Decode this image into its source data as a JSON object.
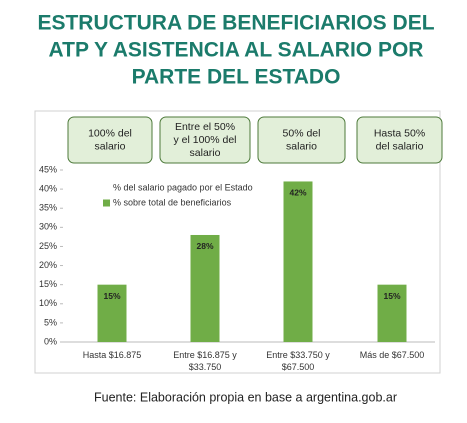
{
  "title": [
    "ESTRUCTURA DE BENEFICIARIOS DEL",
    "ATP Y ASISTENCIA AL SALARIO POR",
    "PARTE DEL ESTADO"
  ],
  "chart_data": {
    "type": "bar",
    "categories": [
      [
        "Hasta $16.875"
      ],
      [
        "Entre $16.875 y",
        "$33.750"
      ],
      [
        "Entre $33.750 y",
        "$67.500"
      ],
      [
        "Más de $67.500"
      ]
    ],
    "annotations": [
      [
        "100% del",
        "salario"
      ],
      [
        "Entre el 50%",
        "y el 100% del",
        "salario"
      ],
      [
        "50% del",
        "salario"
      ],
      [
        "Hasta 50%",
        "del salario"
      ]
    ],
    "series": [
      {
        "name": "% del salario pagado por el Estado",
        "color": "#ffffff",
        "values": [
          null,
          null,
          null,
          null
        ]
      },
      {
        "name": "% sobre total de beneficiarios",
        "color": "#70ad47",
        "values": [
          15,
          28,
          42,
          15
        ],
        "value_labels": [
          "15%",
          "28%",
          "42%",
          "15%"
        ]
      }
    ],
    "ylim": [
      0,
      45
    ],
    "yticks": [
      {
        "value": 0,
        "label": "0%"
      },
      {
        "value": 5,
        "label": "5%"
      },
      {
        "value": 10,
        "label": "10%"
      },
      {
        "value": 15,
        "label": "15%"
      },
      {
        "value": 20,
        "label": "20%"
      },
      {
        "value": 25,
        "label": "25%"
      },
      {
        "value": 30,
        "label": "30%"
      },
      {
        "value": 35,
        "label": "35%"
      },
      {
        "value": 40,
        "label": "40%"
      },
      {
        "value": 45,
        "label": "45%"
      }
    ]
  },
  "source": "Fuente: Elaboración propia en base a argentina.gob.ar"
}
